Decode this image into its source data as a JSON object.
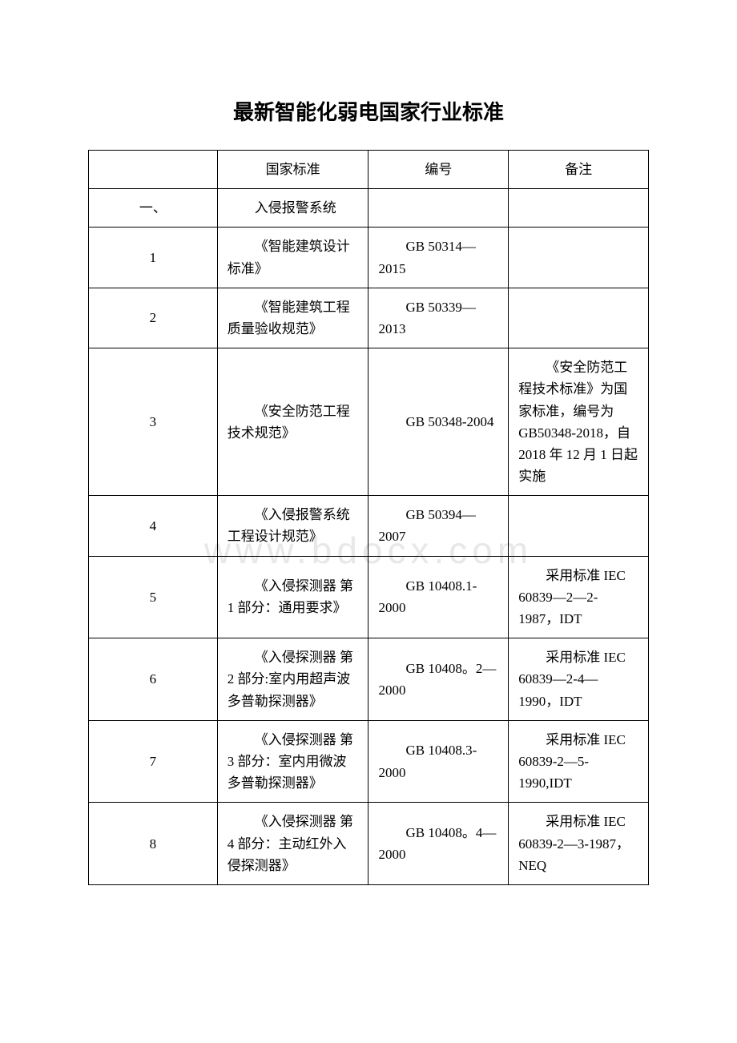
{
  "title": "最新智能化弱电国家行业标准",
  "watermark": "www.bdocx.com",
  "headers": {
    "col1": "",
    "col2": "国家标准",
    "col3": "编号",
    "col4": "备注"
  },
  "rows": [
    {
      "c1": "一、",
      "c2": "入侵报警系统",
      "c3": "",
      "c4": ""
    },
    {
      "c1": "1",
      "c2": "《智能建筑设计标准》",
      "c3": "GB 50314—2015",
      "c4": ""
    },
    {
      "c1": "2",
      "c2": "《智能建筑工程质量验收规范》",
      "c3": "GB 50339—2013",
      "c4": ""
    },
    {
      "c1": "3",
      "c2": "《安全防范工程技术规范》",
      "c3": "GB 50348-2004",
      "c4": "《安全防范工程技术标准》为国家标准，编号为 GB50348-2018，自 2018 年 12 月 1 日起实施"
    },
    {
      "c1": "4",
      "c2": "《入侵报警系统工程设计规范》",
      "c3": "GB 50394—2007",
      "c4": ""
    },
    {
      "c1": "5",
      "c2": "《入侵探测器 第 1 部分：通用要求》",
      "c3": "GB 10408.1-2000",
      "c4": "采用标准 IEC 60839—2—2-1987，IDT"
    },
    {
      "c1": "6",
      "c2": "《入侵探测器 第 2 部分:室内用超声波多普勒探测器》",
      "c3": "GB 10408。2—2000",
      "c4": "采用标准 IEC 60839—2-4—1990，IDT"
    },
    {
      "c1": "7",
      "c2": "《入侵探测器 第 3 部分：室内用微波多普勒探测器》",
      "c3": "GB 10408.3-2000",
      "c4": "采用标准 IEC 60839-2—5-1990,IDT"
    },
    {
      "c1": "8",
      "c2": "《入侵探测器 第 4 部分：主动红外入侵探测器》",
      "c3": "GB 10408。4—2000",
      "c4": "采用标准 IEC 60839-2—3-1987，NEQ"
    }
  ]
}
